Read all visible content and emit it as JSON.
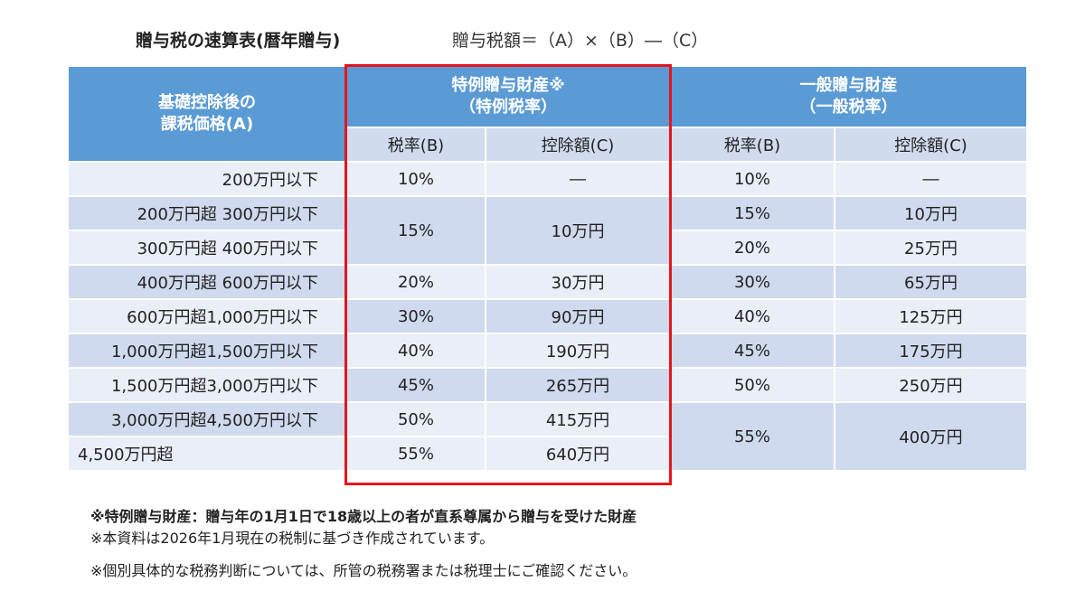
{
  "title": "贈与税の速算表(暦年贈与)",
  "formula": "贈与税額＝（A）×（B）―（C）",
  "headers": {
    "a": "基礎控除後の\n課税価格(A)",
    "special": "特例贈与財産※\n（特例税率）",
    "general": "一般贈与財産\n（一般税率）",
    "rate": "税率(B)",
    "deduction": "控除額(C)"
  },
  "brackets": [
    "200万円以下",
    "200万円超 300万円以下",
    "300万円超 400万円以下",
    "400万円超 600万円以下",
    "600万円超1,000万円以下",
    "1,000万円超1,500万円以下",
    "1,500万円超3,000万円以下",
    "3,000万円超4,500万円以下",
    "4,500万円超"
  ],
  "special": [
    {
      "rate": "10%",
      "ded": "―"
    },
    {
      "rate": "15%",
      "ded": "10万円"
    },
    {
      "rate": "20%",
      "ded": "30万円"
    },
    {
      "rate": "30%",
      "ded": "90万円"
    },
    {
      "rate": "40%",
      "ded": "190万円"
    },
    {
      "rate": "45%",
      "ded": "265万円"
    },
    {
      "rate": "50%",
      "ded": "415万円"
    },
    {
      "rate": "55%",
      "ded": "640万円"
    }
  ],
  "general": [
    {
      "rate": "10%",
      "ded": "―"
    },
    {
      "rate": "15%",
      "ded": "10万円"
    },
    {
      "rate": "20%",
      "ded": "25万円"
    },
    {
      "rate": "30%",
      "ded": "65万円"
    },
    {
      "rate": "40%",
      "ded": "125万円"
    },
    {
      "rate": "45%",
      "ded": "175万円"
    },
    {
      "rate": "50%",
      "ded": "250万円"
    },
    {
      "rate": "55%",
      "ded": "400万円"
    }
  ],
  "notes": [
    "※特例贈与財産：贈与年の1月1日で18歳以上の者が直系尊属から贈与を受けた財産",
    "※本資料は2026年1月現在の税制に基づき作成されています。",
    "※個別具体的な税務判断については、所管の税務署または税理士にご確認ください。"
  ],
  "colors": {
    "header": "#5b9bd5",
    "highlight": "#e8141b"
  }
}
